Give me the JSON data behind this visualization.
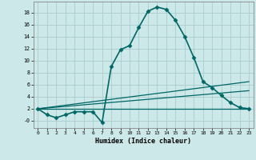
{
  "title": "",
  "xlabel": "Humidex (Indice chaleur)",
  "background_color": "#cce8e8",
  "grid_color": "#aacccc",
  "line_color": "#006666",
  "x_ticks": [
    0,
    1,
    2,
    3,
    4,
    5,
    6,
    7,
    8,
    9,
    10,
    11,
    12,
    13,
    14,
    15,
    16,
    17,
    18,
    19,
    20,
    21,
    22,
    23
  ],
  "y_ticks": [
    0,
    2,
    4,
    6,
    8,
    10,
    12,
    14,
    16,
    18
  ],
  "y_tick_labels": [
    "-0",
    "2",
    "4",
    "6",
    "8",
    "10",
    "12",
    "14",
    "16",
    "18"
  ],
  "ylim": [
    -1.2,
    19.8
  ],
  "xlim": [
    -0.5,
    23.5
  ],
  "main_line": {
    "x": [
      0,
      1,
      2,
      3,
      4,
      5,
      6,
      7,
      8,
      9,
      10,
      11,
      12,
      13,
      14,
      15,
      16,
      17,
      18,
      19,
      20,
      21,
      22,
      23
    ],
    "y": [
      2,
      1,
      0.5,
      1,
      1.5,
      1.5,
      1.5,
      -0.3,
      9,
      11.8,
      12.5,
      15.5,
      18.2,
      18.9,
      18.5,
      16.7,
      14,
      10.5,
      6.5,
      5.5,
      4.2,
      3,
      2.2,
      2
    ],
    "color": "#006666",
    "linewidth": 1.2,
    "marker": "D",
    "markersize": 2.5
  },
  "flat_lines": [
    {
      "x0": 0,
      "y0": 2,
      "x1": 23,
      "y1": 2.0,
      "color": "#006666",
      "linewidth": 0.9
    },
    {
      "x0": 0,
      "y0": 2,
      "x1": 23,
      "y1": 6.5,
      "color": "#006666",
      "linewidth": 0.9
    },
    {
      "x0": 0,
      "y0": 2,
      "x1": 23,
      "y1": 5.0,
      "color": "#006666",
      "linewidth": 0.9
    }
  ]
}
